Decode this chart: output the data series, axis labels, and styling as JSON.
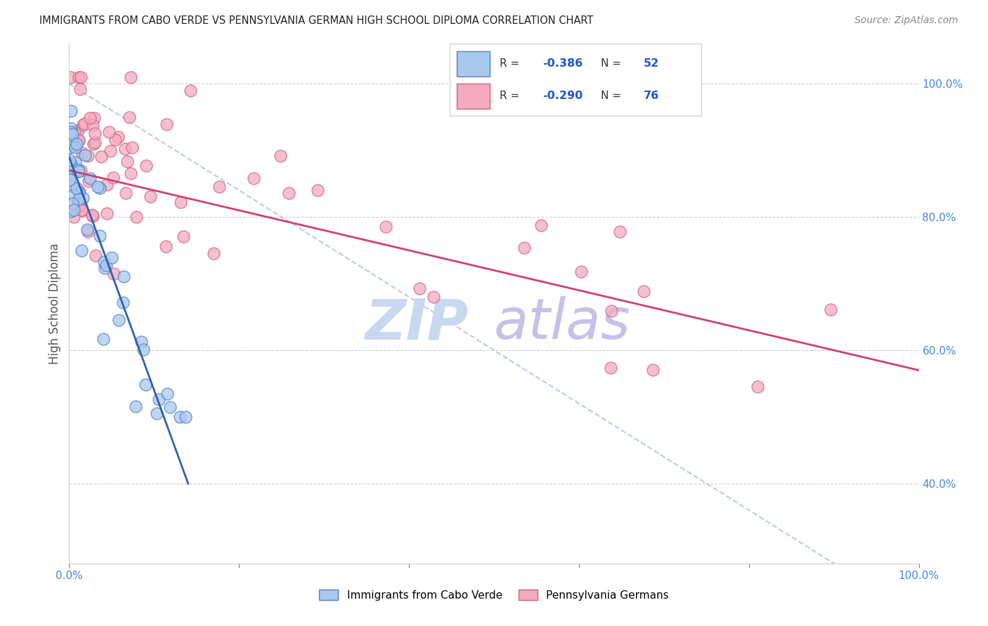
{
  "title": "IMMIGRANTS FROM CABO VERDE VS PENNSYLVANIA GERMAN HIGH SCHOOL DIPLOMA CORRELATION CHART",
  "source": "Source: ZipAtlas.com",
  "ylabel": "High School Diploma",
  "legend_label_blue": "Immigrants from Cabo Verde",
  "legend_label_pink": "Pennsylvania Germans",
  "blue_color": "#A8C8F0",
  "pink_color": "#F4AABF",
  "blue_edge_color": "#5080C0",
  "pink_edge_color": "#D06080",
  "blue_line_color": "#3060B0",
  "pink_line_color": "#D04070",
  "dashed_line_color": "#AABEDD",
  "grid_color": "#CCCCCC",
  "watermark_zip_color": "#C8D8F0",
  "watermark_atlas_color": "#C8C0E8",
  "right_tick_color": "#4488DD",
  "xtick_color": "#4488DD",
  "title_color": "#222222",
  "source_color": "#888888",
  "ylabel_color": "#555555"
}
